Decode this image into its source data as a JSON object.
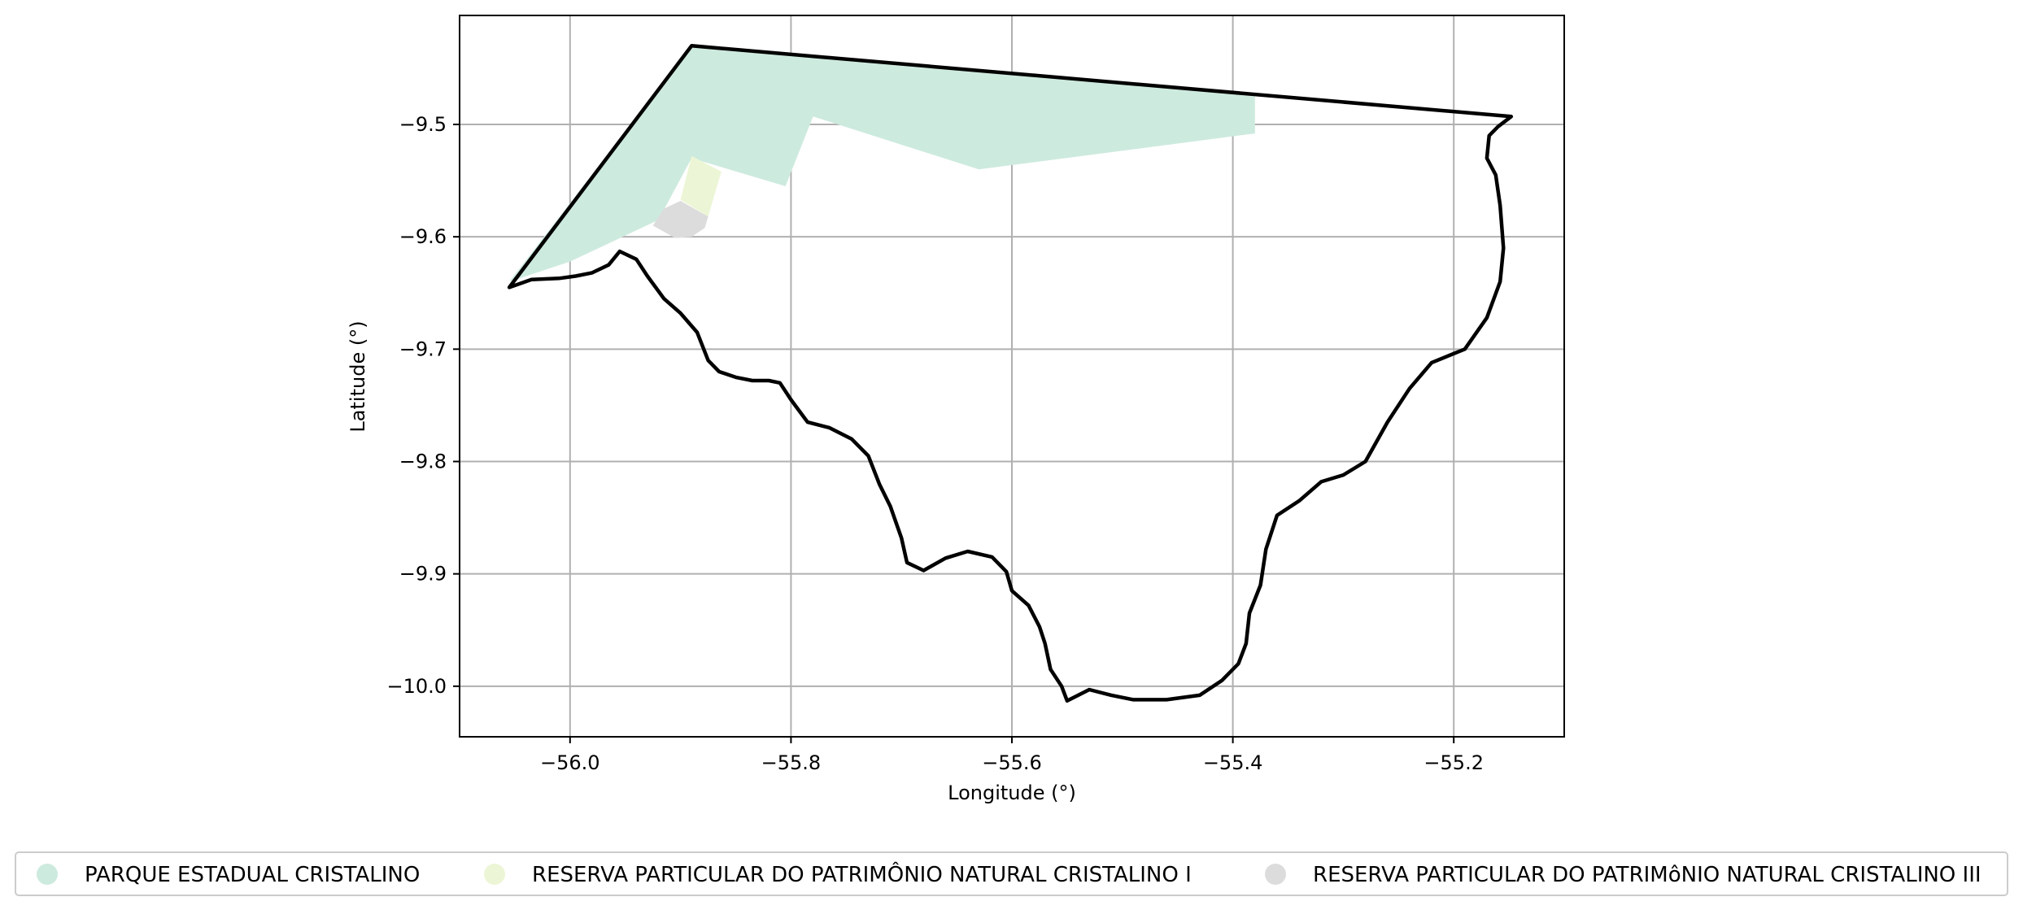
{
  "chart_data": {
    "type": "map",
    "xlabel": "Longitude (°)",
    "ylabel": "Latitude (°)",
    "xlim": [
      -56.1,
      -55.1
    ],
    "ylim": [
      -10.045,
      -9.403
    ],
    "grid": true,
    "legend_placement": "bottom-center",
    "x_ticks": [
      {
        "value": -56.0,
        "label": "−56.0"
      },
      {
        "value": -55.8,
        "label": "−55.8"
      },
      {
        "value": -55.6,
        "label": "−55.6"
      },
      {
        "value": -55.4,
        "label": "−55.4"
      },
      {
        "value": -55.2,
        "label": "−55.2"
      }
    ],
    "y_ticks": [
      {
        "value": -9.5,
        "label": "−9.5"
      },
      {
        "value": -9.6,
        "label": "−9.6"
      },
      {
        "value": -9.7,
        "label": "−9.7"
      },
      {
        "value": -9.8,
        "label": "−9.8"
      },
      {
        "value": -9.9,
        "label": "−9.9"
      },
      {
        "value": -10.0,
        "label": "−10.0"
      }
    ],
    "areas": [
      {
        "name": "PARQUE ESTADUAL CRISTALINO",
        "color": "#cdeade",
        "polygon": [
          [
            -56.055,
            -9.64
          ],
          [
            -55.89,
            -9.43
          ],
          [
            -55.38,
            -9.475
          ],
          [
            -55.38,
            -9.508
          ],
          [
            -55.63,
            -9.54
          ],
          [
            -55.78,
            -9.493
          ],
          [
            -55.805,
            -9.555
          ],
          [
            -55.89,
            -9.53
          ],
          [
            -55.92,
            -9.585
          ],
          [
            -56.0,
            -9.622
          ]
        ]
      },
      {
        "name": "RESERVA PARTICULAR DO PATRIMÔNIO NATURAL CRISTALINO I",
        "color": "#ecf6d6",
        "polygon": [
          [
            -55.89,
            -9.528
          ],
          [
            -55.863,
            -9.542
          ],
          [
            -55.875,
            -9.582
          ],
          [
            -55.9,
            -9.567
          ]
        ]
      },
      {
        "name": "RESERVA PARTICULAR DO PATRIMôNIO NATURAL CRISTALINO III",
        "color": "#dcdcdc",
        "polygon": [
          [
            -55.9,
            -9.568
          ],
          [
            -55.875,
            -9.582
          ],
          [
            -55.878,
            -9.592
          ],
          [
            -55.89,
            -9.6
          ],
          [
            -55.905,
            -9.601
          ],
          [
            -55.925,
            -9.59
          ],
          [
            -55.915,
            -9.575
          ]
        ]
      }
    ],
    "boundary": {
      "color": "#000000",
      "polygon": [
        [
          -56.055,
          -9.645
        ],
        [
          -55.89,
          -9.43
        ],
        [
          -55.148,
          -9.493
        ],
        [
          -55.16,
          -9.502
        ],
        [
          -55.168,
          -9.51
        ],
        [
          -55.17,
          -9.53
        ],
        [
          -55.162,
          -9.545
        ],
        [
          -55.158,
          -9.572
        ],
        [
          -55.155,
          -9.61
        ],
        [
          -55.158,
          -9.64
        ],
        [
          -55.17,
          -9.672
        ],
        [
          -55.19,
          -9.7
        ],
        [
          -55.22,
          -9.712
        ],
        [
          -55.24,
          -9.735
        ],
        [
          -55.26,
          -9.765
        ],
        [
          -55.28,
          -9.8
        ],
        [
          -55.3,
          -9.812
        ],
        [
          -55.32,
          -9.818
        ],
        [
          -55.34,
          -9.835
        ],
        [
          -55.36,
          -9.848
        ],
        [
          -55.37,
          -9.878
        ],
        [
          -55.375,
          -9.91
        ],
        [
          -55.385,
          -9.935
        ],
        [
          -55.388,
          -9.962
        ],
        [
          -55.395,
          -9.98
        ],
        [
          -55.41,
          -9.995
        ],
        [
          -55.43,
          -10.008
        ],
        [
          -55.46,
          -10.012
        ],
        [
          -55.49,
          -10.012
        ],
        [
          -55.51,
          -10.008
        ],
        [
          -55.53,
          -10.003
        ],
        [
          -55.55,
          -10.013
        ],
        [
          -55.555,
          -10.0
        ],
        [
          -55.565,
          -9.985
        ],
        [
          -55.57,
          -9.962
        ],
        [
          -55.575,
          -9.947
        ],
        [
          -55.585,
          -9.928
        ],
        [
          -55.6,
          -9.915
        ],
        [
          -55.605,
          -9.898
        ],
        [
          -55.618,
          -9.885
        ],
        [
          -55.64,
          -9.88
        ],
        [
          -55.66,
          -9.886
        ],
        [
          -55.68,
          -9.897
        ],
        [
          -55.695,
          -9.89
        ],
        [
          -55.7,
          -9.868
        ],
        [
          -55.71,
          -9.84
        ],
        [
          -55.72,
          -9.82
        ],
        [
          -55.73,
          -9.795
        ],
        [
          -55.745,
          -9.78
        ],
        [
          -55.765,
          -9.77
        ],
        [
          -55.785,
          -9.765
        ],
        [
          -55.8,
          -9.745
        ],
        [
          -55.81,
          -9.73
        ],
        [
          -55.82,
          -9.728
        ],
        [
          -55.835,
          -9.728
        ],
        [
          -55.85,
          -9.725
        ],
        [
          -55.865,
          -9.72
        ],
        [
          -55.875,
          -9.71
        ],
        [
          -55.885,
          -9.685
        ],
        [
          -55.9,
          -9.668
        ],
        [
          -55.915,
          -9.655
        ],
        [
          -55.93,
          -9.635
        ],
        [
          -55.94,
          -9.62
        ],
        [
          -55.955,
          -9.613
        ],
        [
          -55.965,
          -9.625
        ],
        [
          -55.98,
          -9.632
        ],
        [
          -55.995,
          -9.635
        ],
        [
          -56.01,
          -9.637
        ],
        [
          -56.035,
          -9.638
        ],
        [
          -56.055,
          -9.645
        ]
      ]
    }
  },
  "legend": {
    "items": [
      {
        "label": "PARQUE ESTADUAL CRISTALINO",
        "color": "#cdeade"
      },
      {
        "label": "RESERVA PARTICULAR DO PATRIMÔNIO NATURAL CRISTALINO I",
        "color": "#ecf6d6"
      },
      {
        "label": "RESERVA PARTICULAR DO PATRIMôNIO NATURAL CRISTALINO III",
        "color": "#dcdcdc"
      }
    ]
  }
}
